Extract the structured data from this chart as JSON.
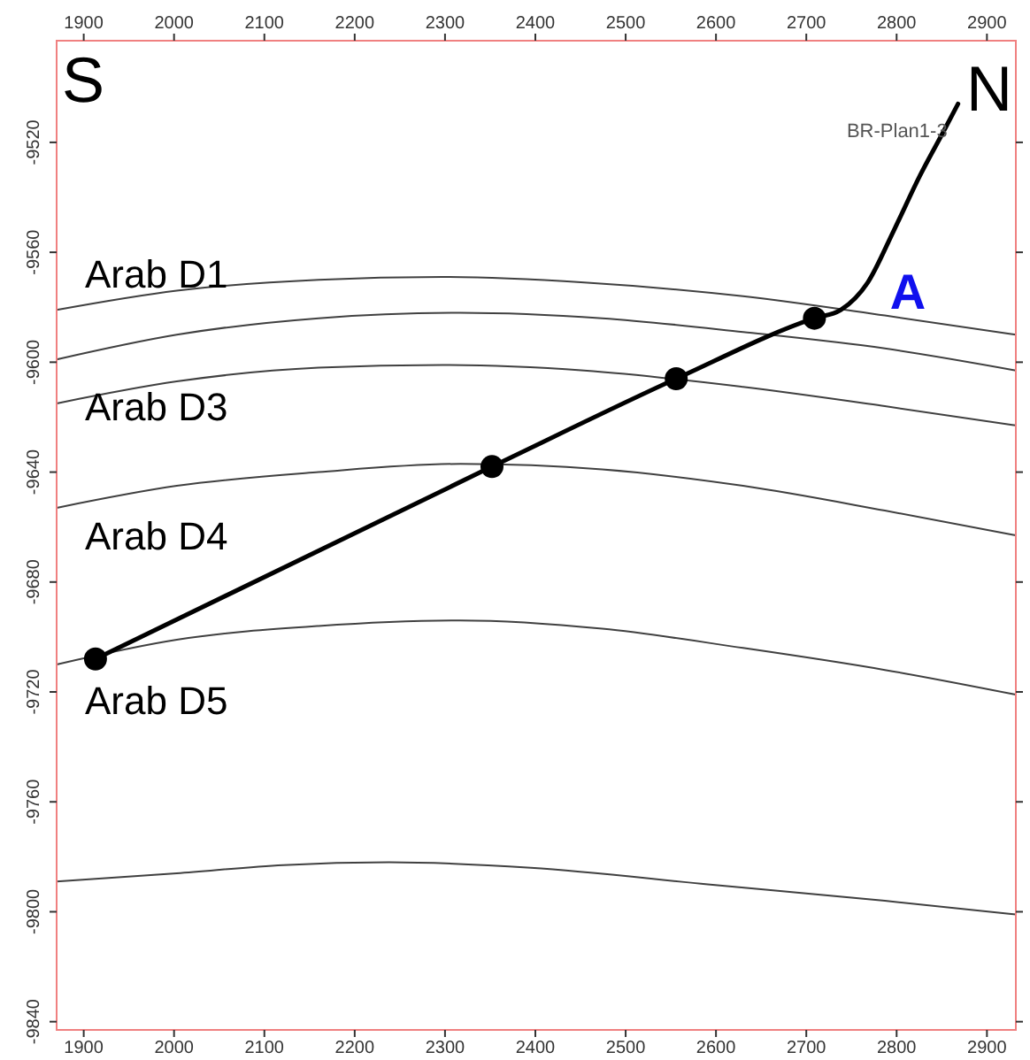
{
  "chart_data": {
    "type": "line",
    "xlim": [
      1870,
      2932
    ],
    "xticks": [
      1900,
      2000,
      2100,
      2200,
      2300,
      2400,
      2500,
      2600,
      2700,
      2800,
      2900
    ],
    "x2lim": [
      1870,
      2932
    ],
    "x2ticks": [
      1900,
      2000,
      2100,
      2200,
      2300,
      2400,
      2500,
      2600,
      2700,
      2800,
      2900
    ],
    "ylim": [
      -9843,
      -9483
    ],
    "yticks": [
      -9520,
      -9560,
      -9600,
      -9640,
      -9680,
      -9720,
      -9760,
      -9800,
      -9840
    ],
    "grid": false,
    "marker": "none",
    "line_style": "solid",
    "series": [
      {
        "color": "#404040",
        "x": [
          1870,
          2003,
          2160,
          2297,
          2454,
          2630,
          2787,
          2932
        ],
        "values": [
          -9581,
          -9574,
          -9570,
          -9569,
          -9571,
          -9576,
          -9583,
          -9590
        ]
      },
      {
        "color": "#404040",
        "x": [
          1870,
          2003,
          2160,
          2317,
          2474,
          2630,
          2787,
          2932
        ],
        "values": [
          -9599,
          -9590,
          -9584,
          -9582,
          -9584,
          -9589,
          -9595,
          -9603
        ]
      },
      {
        "color": "#404040",
        "x": [
          1870,
          2003,
          2160,
          2297,
          2454,
          2630,
          2787,
          2932
        ],
        "values": [
          -9615,
          -9607,
          -9602,
          -9601,
          -9603,
          -9609,
          -9616,
          -9623
        ]
      },
      {
        "color": "#404040",
        "x": [
          1870,
          2003,
          2160,
          2317,
          2474,
          2630,
          2787,
          2932
        ],
        "values": [
          -9653,
          -9645,
          -9640,
          -9637,
          -9639,
          -9645,
          -9654,
          -9663
        ]
      },
      {
        "color": "#404040",
        "x": [
          1870,
          2003,
          2160,
          2317,
          2474,
          2630,
          2787,
          2932
        ],
        "values": [
          -9710,
          -9701,
          -9696,
          -9694,
          -9697,
          -9704,
          -9712,
          -9721
        ]
      },
      {
        "color": "#404040",
        "x": [
          1870,
          2003,
          2121,
          2238,
          2395,
          2591,
          2787,
          2932
        ],
        "values": [
          -9789,
          -9786,
          -9783,
          -9782,
          -9784,
          -9790,
          -9796,
          -9801
        ]
      },
      {
        "name": "BR-Plan1-3",
        "color": "#000000",
        "x": [
          1913,
          2352,
          2556,
          2709,
          2738,
          2768,
          2797,
          2826,
          2852,
          2868
        ],
        "values": [
          -9708,
          -9638,
          -9606,
          -9584,
          -9581,
          -9571,
          -9552,
          -9532,
          -9516,
          -9506
        ]
      },
      {
        "type": "scatter",
        "marker": "circle",
        "color": "#000000",
        "x": [
          1913,
          2352,
          2556,
          2709
        ],
        "values": [
          -9708,
          -9638,
          -9606,
          -9584
        ]
      }
    ],
    "annotations": [
      "S",
      "N",
      "Arab D1",
      "Arab D3",
      "Arab D4",
      "Arab D5",
      "A"
    ]
  }
}
